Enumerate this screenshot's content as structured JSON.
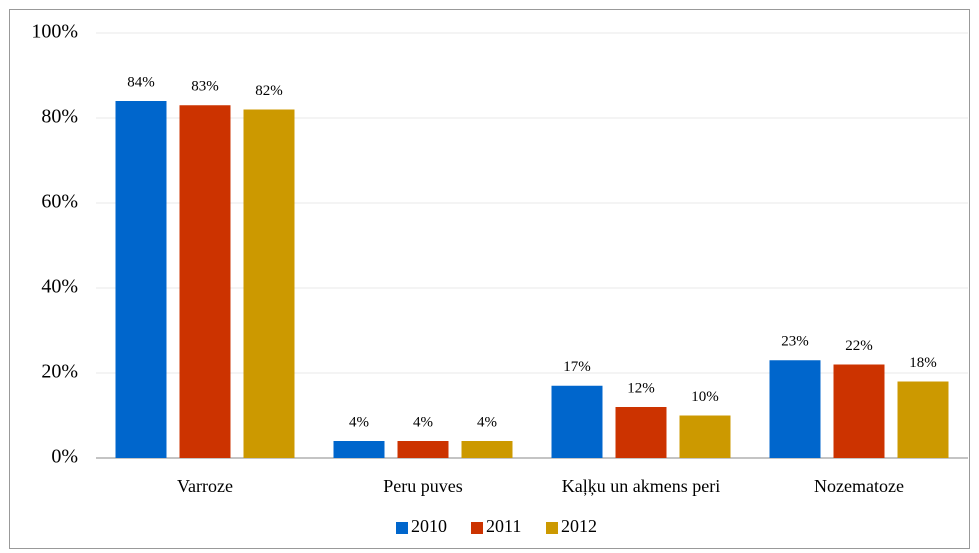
{
  "chart_data": {
    "type": "bar",
    "categories": [
      "Varroze",
      "Peru puves",
      "Kaļķu un akmens peri",
      "Nozematoze"
    ],
    "series": [
      {
        "name": "2010",
        "color": "#0066cc",
        "values": [
          84,
          4,
          17,
          23
        ],
        "value_labels": [
          "84%",
          "4%",
          "17%",
          "23%"
        ]
      },
      {
        "name": "2011",
        "color": "#cc3300",
        "values": [
          83,
          4,
          12,
          22
        ],
        "value_labels": [
          "83%",
          "4%",
          "12%",
          "22%"
        ]
      },
      {
        "name": "2012",
        "color": "#cc9900",
        "values": [
          82,
          4,
          10,
          18
        ],
        "value_labels": [
          "82%",
          "4%",
          "10%",
          "18%"
        ]
      }
    ],
    "ylim": [
      0,
      100
    ],
    "yticks": [
      {
        "value": 0,
        "label": "0%"
      },
      {
        "value": 20,
        "label": "20%"
      },
      {
        "value": 40,
        "label": "40%"
      },
      {
        "value": 60,
        "label": "60%"
      },
      {
        "value": 80,
        "label": "80%"
      },
      {
        "value": 100,
        "label": "100%"
      }
    ],
    "grid": true,
    "legend": "bottom"
  }
}
